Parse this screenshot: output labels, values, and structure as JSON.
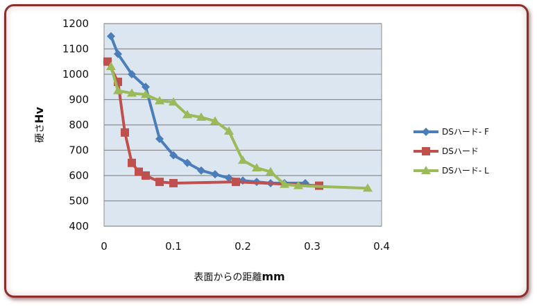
{
  "chart_data": {
    "type": "line",
    "title": "",
    "xlabel": "表面からの距離mm",
    "xlabel_parts": [
      "表面からの距離",
      "mm"
    ],
    "ylabel": "硬さHv",
    "ylabel_parts": [
      "硬さ",
      "Hv"
    ],
    "xlim": [
      0,
      0.4
    ],
    "ylim": [
      400,
      1200
    ],
    "xticks": [
      0,
      0.1,
      0.2,
      0.3,
      0.4
    ],
    "xtick_labels": [
      "0",
      "0.1",
      "0.2",
      "0.3",
      "0.4"
    ],
    "yticks": [
      400,
      500,
      600,
      700,
      800,
      900,
      1000,
      1100,
      1200
    ],
    "ytick_labels": [
      "400",
      "500",
      "600",
      "700",
      "800",
      "900",
      "1000",
      "1100",
      "1200"
    ],
    "grid": "horizontal",
    "plot_background": "#dce6f1",
    "legend_position": "right",
    "series": [
      {
        "name": "DSハード- F",
        "color": "#4a7ebb",
        "marker": "diamond",
        "x": [
          0.01,
          0.02,
          0.04,
          0.06,
          0.08,
          0.1,
          0.12,
          0.14,
          0.16,
          0.18,
          0.2,
          0.22,
          0.24,
          0.26,
          0.29
        ],
        "y": [
          1150,
          1080,
          1000,
          950,
          745,
          680,
          650,
          620,
          605,
          590,
          580,
          575,
          570,
          570,
          570
        ]
      },
      {
        "name": "DSハード",
        "color": "#c0504d",
        "marker": "square",
        "x": [
          0.005,
          0.02,
          0.03,
          0.04,
          0.05,
          0.06,
          0.08,
          0.1,
          0.19,
          0.31
        ],
        "y": [
          1050,
          970,
          770,
          650,
          615,
          600,
          575,
          570,
          575,
          560
        ]
      },
      {
        "name": "DSハード- L",
        "color": "#9bbb59",
        "marker": "triangle",
        "x": [
          0.01,
          0.02,
          0.04,
          0.06,
          0.08,
          0.1,
          0.12,
          0.14,
          0.16,
          0.18,
          0.2,
          0.22,
          0.24,
          0.26,
          0.28,
          0.38
        ],
        "y": [
          1030,
          935,
          925,
          920,
          895,
          890,
          840,
          830,
          815,
          775,
          660,
          630,
          615,
          565,
          560,
          550
        ]
      }
    ]
  }
}
